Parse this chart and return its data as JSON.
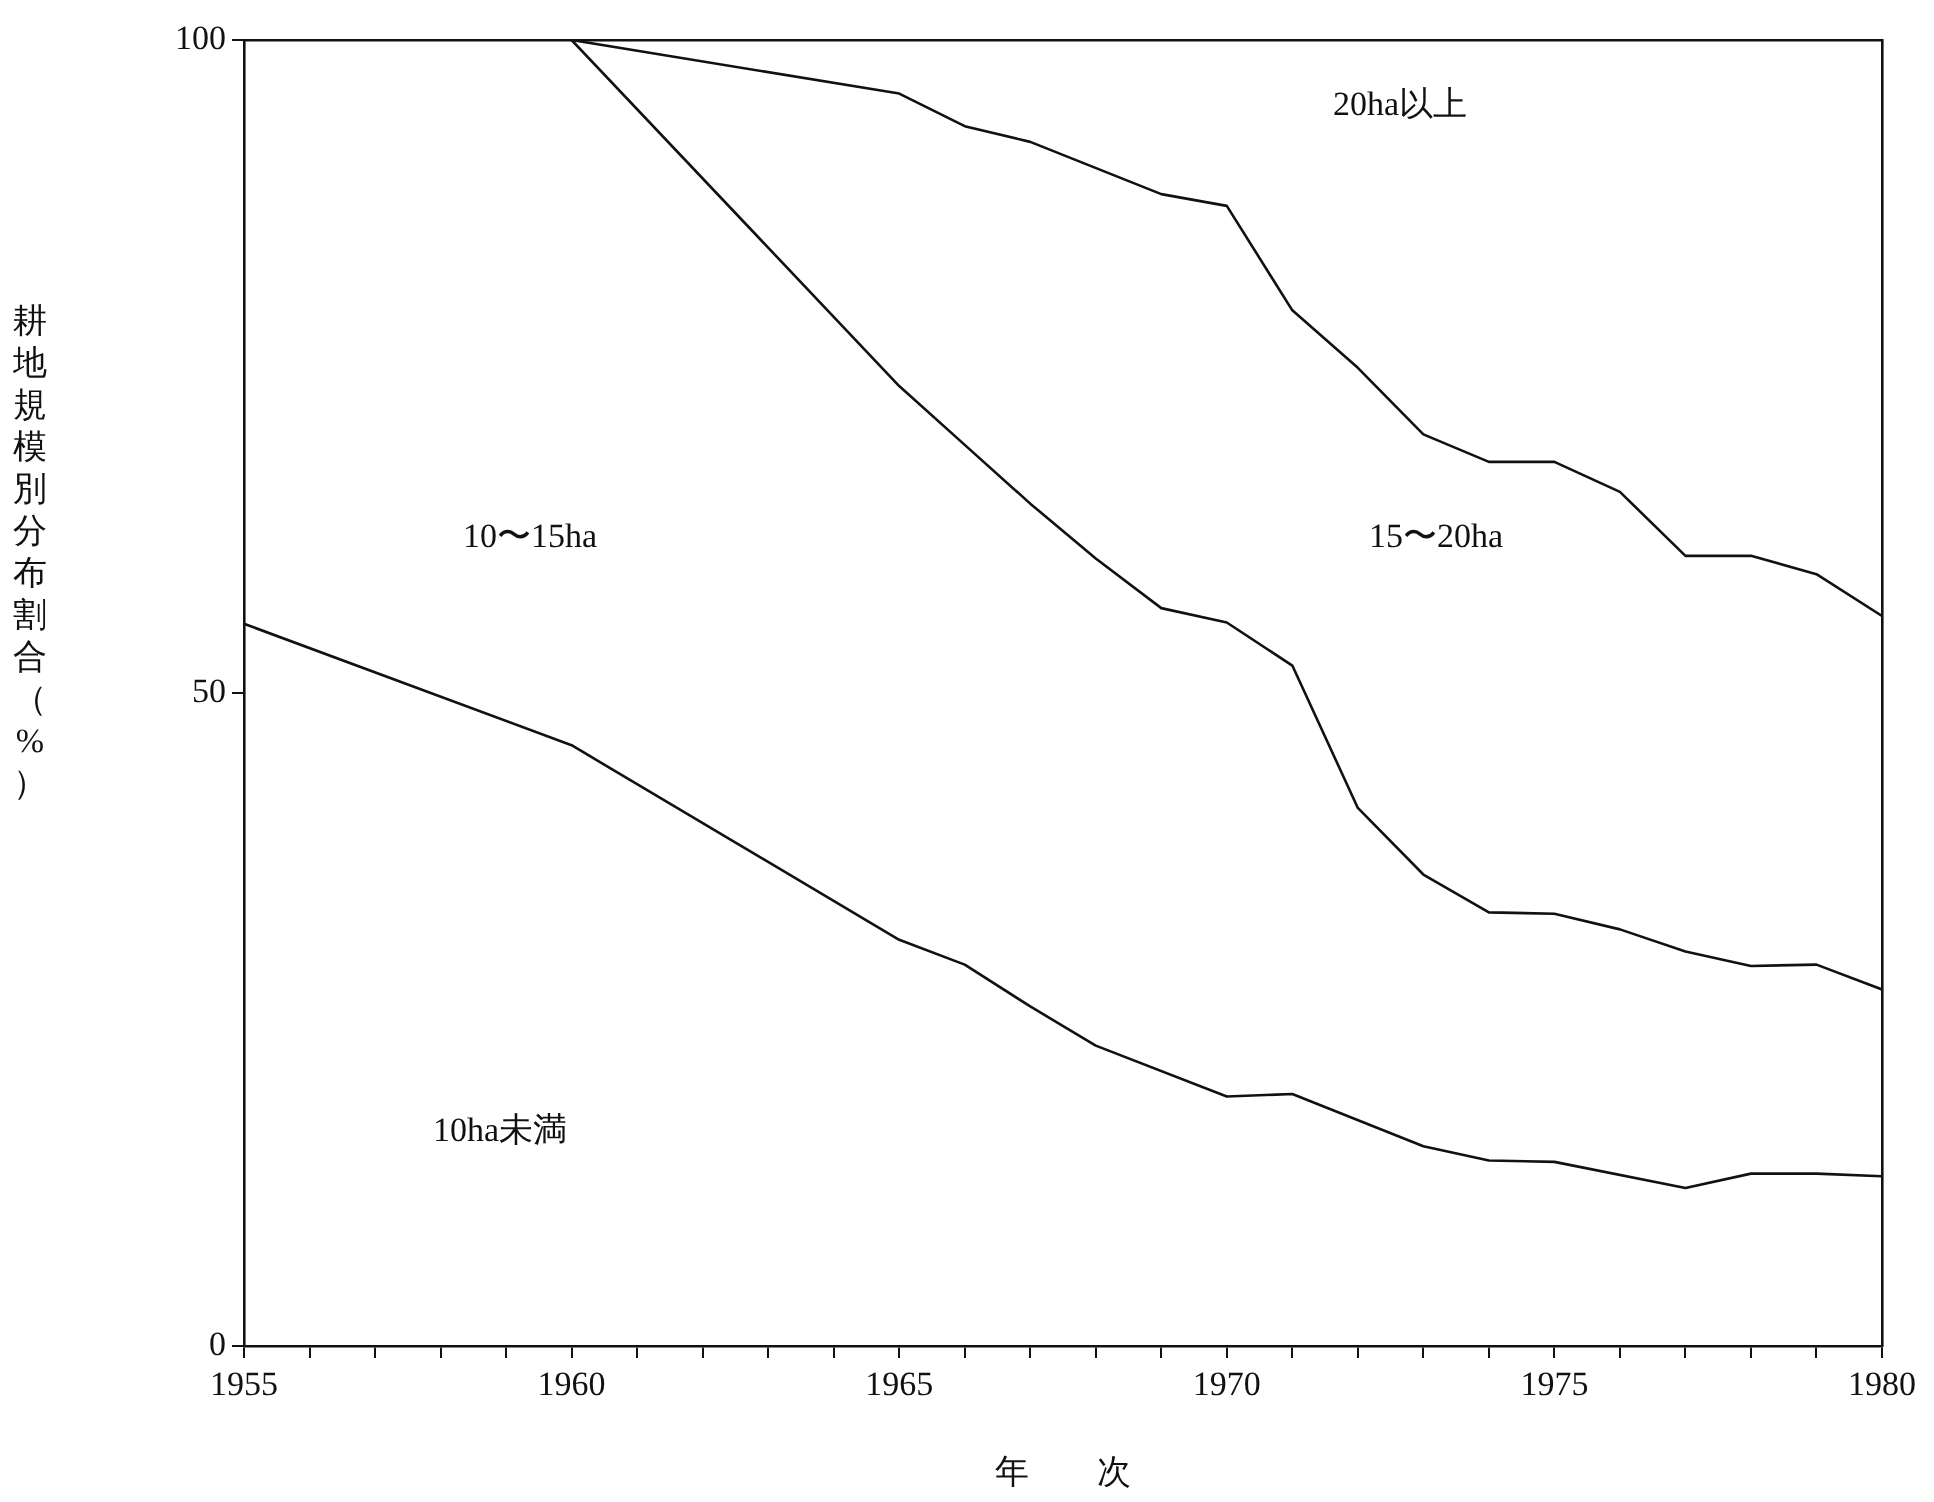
{
  "chart_data": {
    "type": "line",
    "xlabel": "年　　次",
    "ylabel": "耕地規模別分布割合（%）",
    "xlim": [
      1955,
      1980
    ],
    "xticks": [
      1955,
      {
        "value": 1956,
        "label": null
      },
      {
        "value": 1957,
        "label": null
      },
      {
        "value": 1958,
        "label": null
      },
      {
        "value": 1959,
        "label": null
      },
      1960,
      {
        "value": 1961,
        "label": null
      },
      {
        "value": 1962,
        "label": null
      },
      {
        "value": 1963,
        "label": null
      },
      {
        "value": 1964,
        "label": null
      },
      1965,
      {
        "value": 1966,
        "label": null
      },
      {
        "value": 1967,
        "label": null
      },
      {
        "value": 1968,
        "label": null
      },
      {
        "value": 1969,
        "label": null
      },
      1970,
      {
        "value": 1971,
        "label": null
      },
      {
        "value": 1972,
        "label": null
      },
      {
        "value": 1973,
        "label": null
      },
      {
        "value": 1974,
        "label": null
      },
      1975,
      {
        "value": 1976,
        "label": null
      },
      {
        "value": 1977,
        "label": null
      },
      {
        "value": 1978,
        "label": null
      },
      {
        "value": 1979,
        "label": null
      },
      1980
    ],
    "ylim": [
      0,
      100
    ],
    "yticks": [
      0,
      50,
      100
    ],
    "series": [
      {
        "color": "#111111",
        "x": [
          1955,
          1960,
          1965,
          1966,
          1967,
          1968,
          1970,
          1971,
          1973,
          1974,
          1975,
          1977,
          1978,
          1979,
          1980
        ],
        "values": [
          55.3,
          46,
          31.1,
          29.2,
          26,
          23,
          19.1,
          19.3,
          15.3,
          14.2,
          14.1,
          12.1,
          13.2,
          13.2,
          13
        ]
      },
      {
        "color": "#111111",
        "x": [
          1960,
          1965,
          1966,
          1967,
          1968,
          1969,
          1970,
          1971,
          1972,
          1973,
          1974,
          1975,
          1976,
          1977,
          1978,
          1979,
          1980
        ],
        "values": [
          100,
          73.5,
          69,
          64.5,
          60.3,
          56.5,
          55.4,
          52.1,
          41.2,
          36.1,
          33.2,
          33.1,
          31.9,
          30.2,
          29.1,
          29.2,
          27.3
        ]
      },
      {
        "color": "#111111",
        "x": [
          1960,
          1965,
          1966,
          1967,
          1969,
          1970,
          1971,
          1972,
          1973,
          1974,
          1975,
          1976,
          1977,
          1978,
          1979,
          1980
        ],
        "values": [
          100,
          95.9,
          93.4,
          92.2,
          88.2,
          87.3,
          79.3,
          74.9,
          69.8,
          67.7,
          67.7,
          65.4,
          60.5,
          60.5,
          59.1,
          55.9
        ]
      }
    ],
    "annotations": [
      "20ha以上",
      "15〜20ha",
      "10〜15ha",
      "10ha未満"
    ]
  }
}
